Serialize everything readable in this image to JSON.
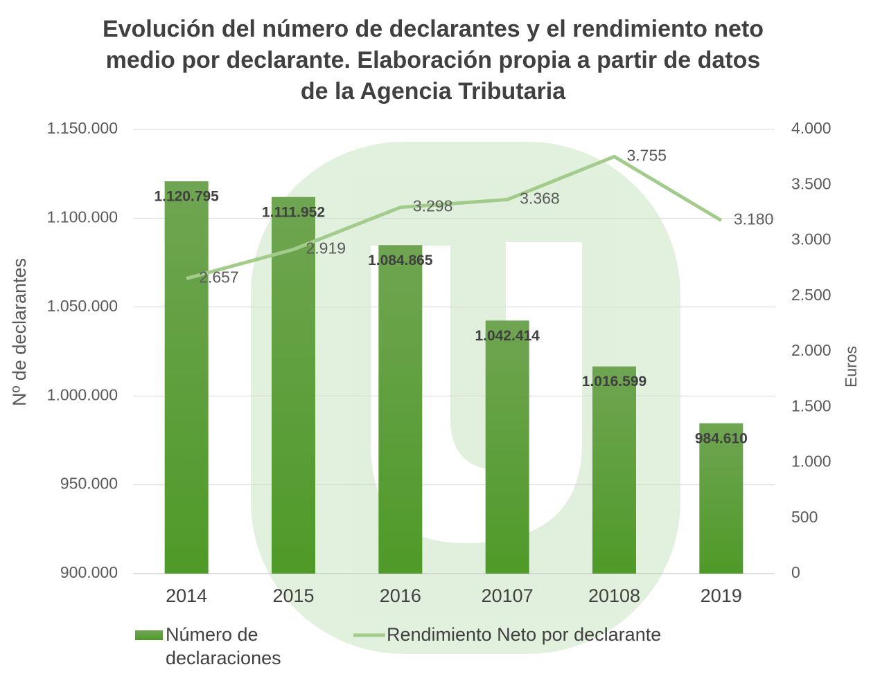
{
  "chart_data": {
    "type": "combo",
    "title": "Evolución del número de declarantes y el rendimiento neto medio por declarante. Elaboración propia a partir de datos de la Agencia Tributaria",
    "categories": [
      "2014",
      "2015",
      "2016",
      "20107",
      "20108",
      "2019"
    ],
    "y_label": "Nº de declarantes",
    "y2_label": "Euros",
    "series": [
      {
        "name": "Número de declaraciones",
        "type": "bar",
        "color": "#5a9c34",
        "values": [
          1120795,
          1111952,
          1084865,
          1042414,
          1016599,
          984610
        ],
        "value_labels": [
          "1.120.795",
          "1.111.952",
          "1.084.865",
          "1.042.414",
          "1.016.599",
          "984.610"
        ]
      },
      {
        "name": "Rendimiento Neto por declarante",
        "type": "line",
        "axis": "y2",
        "color": "#a3cb8c",
        "values": [
          2657,
          2919,
          3298,
          3368,
          3755,
          3180
        ],
        "value_labels": [
          "2.657",
          "2.919",
          "3.298",
          "3.368",
          "3.755",
          "3.180"
        ]
      }
    ],
    "ylim": [
      900000,
      1150000
    ],
    "yticks": [
      {
        "value": 900000,
        "label": "900.000"
      },
      {
        "value": 950000,
        "label": "950.000"
      },
      {
        "value": 1000000,
        "label": "1.000.000"
      },
      {
        "value": 1050000,
        "label": "1.050.000"
      },
      {
        "value": 1100000,
        "label": "1.100.000"
      },
      {
        "value": 1150000,
        "label": "1.150.000"
      }
    ],
    "y2lim": [
      0,
      4000
    ],
    "y2ticks": [
      0,
      500,
      {
        "value": 1000,
        "label": "1.000"
      },
      {
        "value": 1500,
        "label": "1.500"
      },
      {
        "value": 2000,
        "label": "2.000"
      },
      {
        "value": 2500,
        "label": "2.500"
      },
      {
        "value": 3000,
        "label": "3.000"
      },
      {
        "value": 3500,
        "label": "3.500"
      },
      {
        "value": 4000,
        "label": "4.000"
      }
    ],
    "grid": true,
    "legend": "bottom"
  }
}
